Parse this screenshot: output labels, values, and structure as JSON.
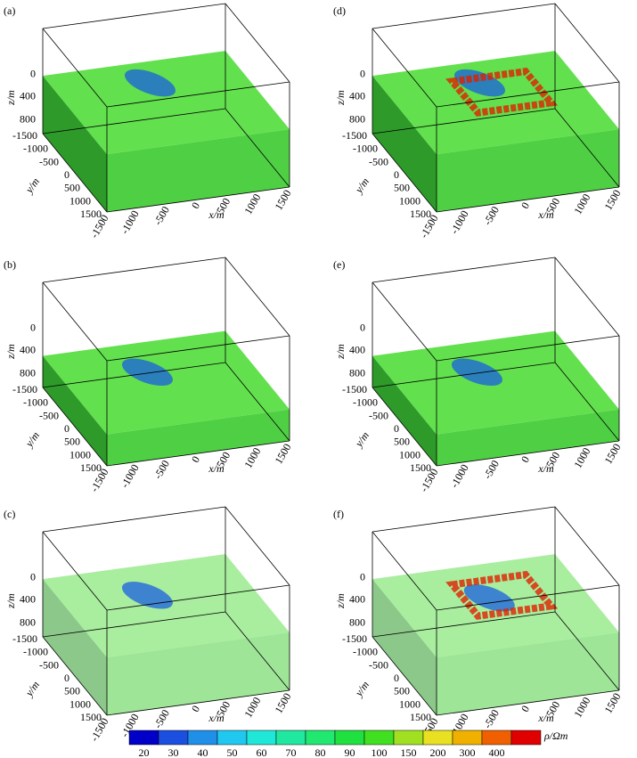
{
  "panels": [
    {
      "label": "(a)"
    },
    {
      "label": "(d)"
    },
    {
      "label": "(b)"
    },
    {
      "label": "(e)"
    },
    {
      "label": "(c)"
    },
    {
      "label": "(f)"
    }
  ],
  "axes": {
    "z_label": "z/m",
    "z_ticks": [
      "0",
      "400",
      "800"
    ],
    "y_label": "y/m",
    "y_ticks": [
      "-1500",
      "-1000",
      "-500",
      "0",
      "500",
      "1000",
      "1500"
    ],
    "x_label": "x/m",
    "x_ticks": [
      "-1500",
      "-1000",
      "-500",
      "0",
      "500",
      "1000",
      "1500"
    ]
  },
  "colorbar": {
    "title": "ρ/Ωm",
    "ticks": [
      20,
      30,
      40,
      50,
      60,
      70,
      80,
      90,
      100,
      150,
      200,
      300,
      400
    ],
    "colors": [
      "#0000c8",
      "#1a4fe0",
      "#1f8fe8",
      "#20c8f0",
      "#20e8d8",
      "#20e8a0",
      "#20e870",
      "#20e040",
      "#40e020",
      "#a0e020",
      "#e8e020",
      "#f0b000",
      "#f06000",
      "#e00000"
    ]
  }
}
